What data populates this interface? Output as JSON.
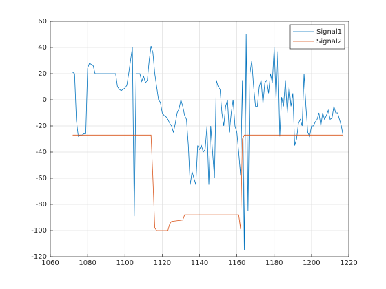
{
  "chart_data": {
    "type": "line",
    "xlim": [
      1060,
      1220
    ],
    "xticks": [
      1060,
      1080,
      1100,
      1120,
      1140,
      1160,
      1180,
      1200,
      1220
    ],
    "ylim": [
      -120,
      60
    ],
    "yticks": [
      -120,
      -100,
      -80,
      -60,
      -40,
      -20,
      0,
      20,
      40,
      60
    ],
    "grid": true,
    "legend": "northeast",
    "series": [
      {
        "name": "Signal1",
        "color": "#0072bd",
        "x": [
          1072,
          1073,
          1074,
          1075,
          1076,
          1077,
          1078,
          1079,
          1080,
          1081,
          1082,
          1083,
          1084,
          1085,
          1086,
          1087,
          1088,
          1089,
          1090,
          1091,
          1092,
          1093,
          1094,
          1095,
          1096,
          1097,
          1098,
          1099,
          1100,
          1101,
          1102,
          1103,
          1104,
          1105,
          1106,
          1107,
          1108,
          1109,
          1110,
          1111,
          1112,
          1113,
          1114,
          1115,
          1116,
          1117,
          1118,
          1119,
          1120,
          1121,
          1122,
          1123,
          1124,
          1125,
          1126,
          1127,
          1128,
          1129,
          1130,
          1131,
          1132,
          1133,
          1134,
          1135,
          1136,
          1137,
          1138,
          1139,
          1140,
          1141,
          1142,
          1143,
          1144,
          1145,
          1146,
          1147,
          1148,
          1149,
          1150,
          1151,
          1152,
          1153,
          1154,
          1155,
          1156,
          1157,
          1158,
          1159,
          1160,
          1161,
          1162,
          1163,
          1164,
          1165,
          1166,
          1167,
          1168,
          1169,
          1170,
          1171,
          1172,
          1173,
          1174,
          1175,
          1176,
          1177,
          1178,
          1179,
          1180,
          1181,
          1182,
          1183,
          1184,
          1185,
          1186,
          1187,
          1188,
          1189,
          1190,
          1191,
          1192,
          1193,
          1194,
          1195,
          1196,
          1197,
          1198,
          1199,
          1200,
          1201,
          1202,
          1203,
          1204,
          1205,
          1206,
          1207,
          1208,
          1209,
          1210,
          1211,
          1212,
          1213,
          1214,
          1215,
          1216,
          1217
        ],
        "values": [
          21,
          20,
          -16,
          -28,
          -27,
          -27,
          -26,
          -26,
          24,
          28,
          27,
          26,
          20,
          20,
          20,
          20,
          20,
          20,
          20,
          20,
          20,
          20,
          20,
          20,
          10,
          8,
          7,
          8,
          9,
          11,
          20,
          30,
          40,
          -89,
          20,
          20,
          20,
          14,
          18,
          13,
          15,
          30,
          41,
          36,
          20,
          10,
          0,
          -2,
          -10,
          -12,
          -13,
          -15,
          -18,
          -20,
          -25,
          -18,
          -10,
          -7,
          0,
          -5,
          -12,
          -15,
          -35,
          -65,
          -55,
          -60,
          -65,
          -35,
          -38,
          -35,
          -40,
          -38,
          -20,
          -65,
          -20,
          -40,
          -60,
          15,
          10,
          8,
          -10,
          -20,
          -5,
          0,
          -25,
          -10,
          0,
          -20,
          -25,
          -40,
          -58,
          15,
          -115,
          50,
          -85,
          20,
          30,
          10,
          -5,
          -5,
          10,
          15,
          -3,
          13,
          15,
          5,
          20,
          13,
          40,
          0,
          37,
          -28,
          2,
          -5,
          15,
          -10,
          10,
          -5,
          5,
          -35,
          -30,
          -18,
          -15,
          -20,
          20,
          -5,
          -25,
          -28,
          -20,
          -20,
          -17,
          -15,
          -10,
          -20,
          -10,
          -15,
          -12,
          -8,
          -15,
          -14,
          -5,
          -10,
          -10,
          -15,
          -20,
          -28
        ]
      },
      {
        "name": "Signal2",
        "color": "#d95319",
        "x": [
          1072,
          1114,
          1115,
          1116,
          1117,
          1123,
          1124,
          1125,
          1131,
          1132,
          1161,
          1162,
          1163,
          1164,
          1217
        ],
        "values": [
          -27,
          -27,
          -60,
          -98,
          -100,
          -100,
          -95,
          -93,
          -92,
          -88,
          -88,
          -99,
          -30,
          -27,
          -27
        ]
      }
    ]
  }
}
